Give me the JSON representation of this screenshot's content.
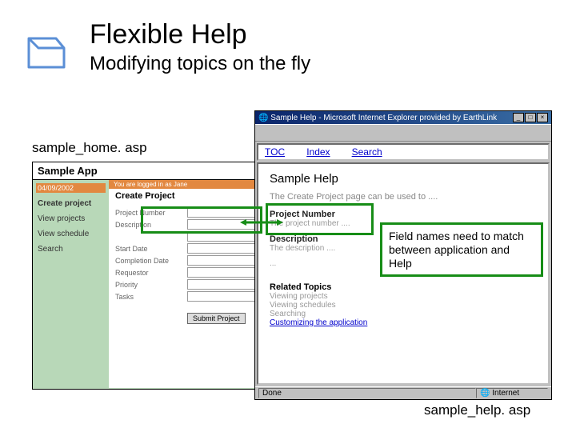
{
  "slide": {
    "title": "Flexible Help",
    "subtitle": "Modifying topics on the fly",
    "caption_left": "sample_home. asp",
    "caption_right": "sample_help. asp",
    "callout": "Field names need to match between application and Help"
  },
  "colors": {
    "highlight": "#178d17",
    "app_bg": "#b8d8b8",
    "accent": "#e28840",
    "link": "#0000cc",
    "titlebar_start": "#0a246a",
    "titlebar_end": "#3a6ea5"
  },
  "app": {
    "title": "Sample App",
    "date": "04/09/2002",
    "breadcrumb": "You are logged in as Jane",
    "nav": [
      {
        "label": "Create project",
        "active": true
      },
      {
        "label": "View projects"
      },
      {
        "label": "View schedule"
      },
      {
        "label": "Search"
      }
    ],
    "page_title": "Create Project",
    "fields": [
      {
        "label": "Project Number"
      },
      {
        "label": "Description"
      },
      {
        "label": " "
      },
      {
        "label": "Start Date"
      },
      {
        "label": "Completion Date"
      },
      {
        "label": "Requestor"
      },
      {
        "label": "Priority"
      },
      {
        "label": "Tasks"
      }
    ],
    "submit_label": "Submit Project"
  },
  "help": {
    "window_title": "Sample Help - Microsoft Internet Explorer provided by EarthLink",
    "tabs": [
      "TOC",
      "Index",
      "Search"
    ],
    "heading": "Sample Help",
    "intro": "The Create Project page can be used to ....",
    "fields": [
      {
        "name": "Project Number",
        "desc": "The project number ...."
      },
      {
        "name": "Description",
        "desc": "The description ...."
      }
    ],
    "ellipsis": "...",
    "related_heading": "Related Topics",
    "related": [
      "Viewing projects",
      "Viewing schedules",
      "Searching"
    ],
    "related_last": "Customizing the application",
    "status_done": "Done",
    "status_zone": "Internet"
  }
}
